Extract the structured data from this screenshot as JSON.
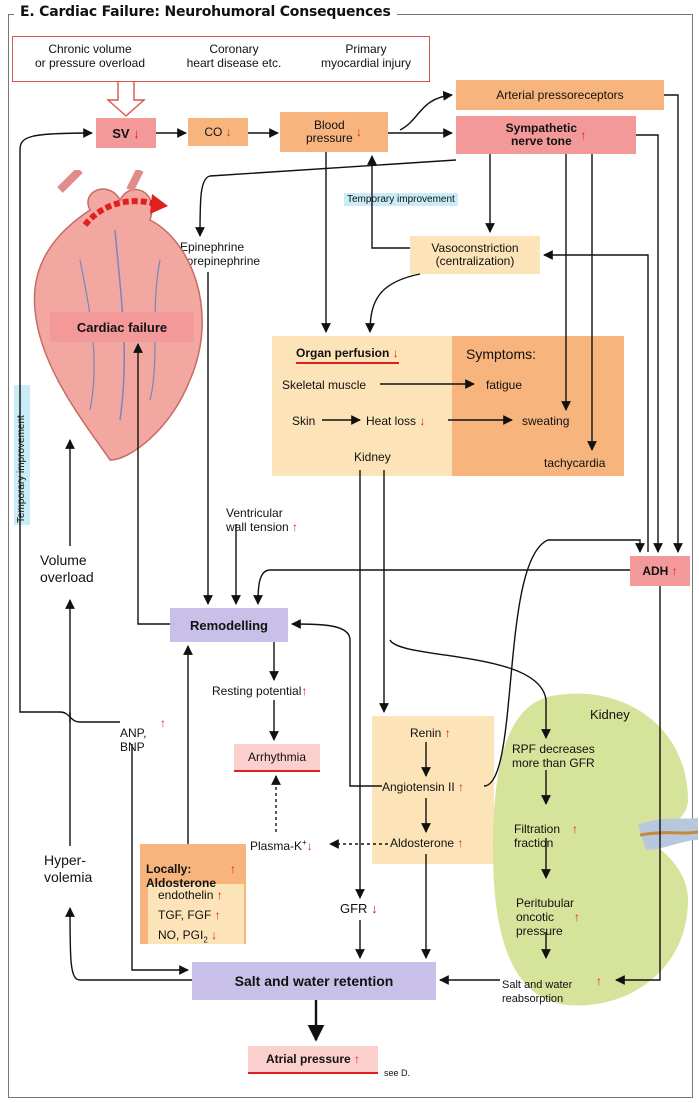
{
  "title": "E. Cardiac Failure: Neurohumoral Consequences",
  "causes": {
    "c1": "Chronic volume\nor pressure overload",
    "c2": "Coronary\nheart disease etc.",
    "c3": "Primary\nmyocardial injury"
  },
  "nodes": {
    "sv": "SV",
    "co": "CO",
    "bp": "Blood\npressure",
    "arterial": "Arterial pressoreceptors",
    "sympathetic": "Sympathetic\nnerve tone",
    "temp1": "Temporary improvement",
    "vaso": "Vasoconstriction\n(centralization)",
    "epi": "Epinephrine\nnorepinephrine",
    "cardiac_failure": "Cardiac failure",
    "organ_perfusion": "Organ perfusion",
    "symptoms": "Symptoms:",
    "skeletal": "Skeletal muscle",
    "fatigue": "fatigue",
    "skin": "Skin",
    "heat_loss": "Heat loss",
    "sweating": "sweating",
    "kidney_organ": "Kidney",
    "tachy": "tachycardia",
    "temp2": "Temporary improvement",
    "vwt": "Ventricular\nwall tension",
    "volume_overload": "Volume\noverload",
    "adh": "ADH",
    "remodelling": "Remodelling",
    "resting": "Resting potential",
    "arrhythmia": "Arrhythmia",
    "anp": "ANP,\nBNP",
    "renin": "Renin",
    "angiotensin": "Angiotensin II",
    "aldosterone": "Aldosterone",
    "plasma_k": "Plasma-K",
    "hypervolemia": "Hyper-\nvolemia",
    "locally": "Locally:\nAldosterone",
    "endothelin": "endothelin",
    "tgf": "TGF, FGF",
    "no_pgi": "NO, PGI",
    "gfr": "GFR",
    "salt_water": "Salt and water retention",
    "atrial": "Atrial pressure",
    "see_d": "see D.",
    "kidney_title": "Kidney",
    "rpf": "RPF decreases\nmore than GFR",
    "filtration": "Filtration\nfraction",
    "peritubular": "Peritubular\noncotic\npressure",
    "salt_reabs": "Salt and water\nreabsorption"
  },
  "colors": {
    "orange": "#f7b47d",
    "pink": "#f3999a",
    "light_orange": "#fde3b8",
    "purple": "#c9c0ea",
    "red": "#e02020",
    "kidney_green": "#d6e39a"
  }
}
